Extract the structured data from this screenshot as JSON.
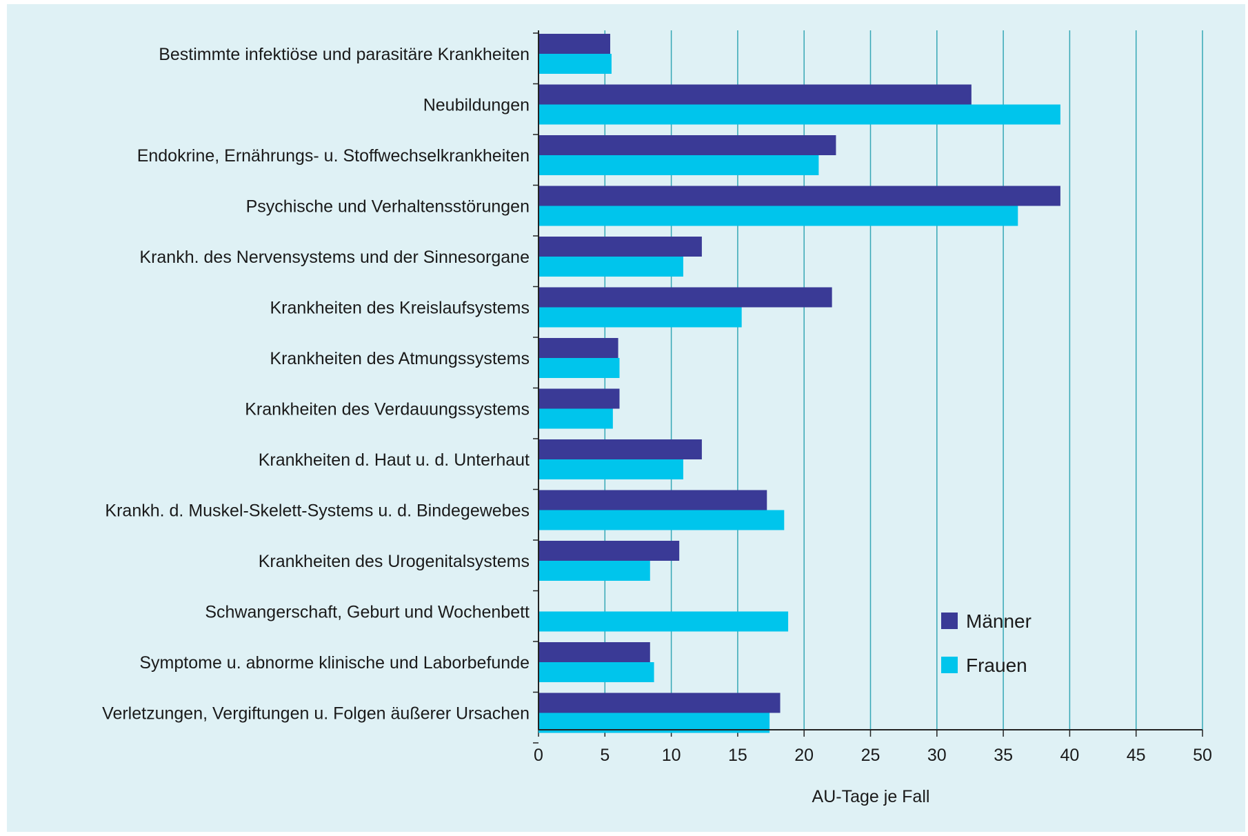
{
  "chart_data": {
    "type": "bar",
    "orientation": "horizontal",
    "categories": [
      "Bestimmte infektiöse und parasitäre Krankheiten",
      "Neubildungen",
      "Endokrine, Ernährungs- u. Stoffwechselkrankheiten",
      "Psychische und Verhaltensstörungen",
      "Krankh. des Nervensystems und der Sinnesorgane",
      "Krankheiten des Kreislaufsystems",
      "Krankheiten des Atmungssystems",
      "Krankheiten des Verdauungssystems",
      "Krankheiten d. Haut u. d. Unterhaut",
      "Krankh. d. Muskel-Skelett-Systems u. d. Bindegewebes",
      "Krankheiten des Urogenitalsystems",
      "Schwangerschaft, Geburt und Wochenbett",
      "Symptome u. abnorme klinische und Laborbefunde",
      "Verletzungen, Vergiftungen u. Folgen äußerer Ursachen"
    ],
    "series": [
      {
        "name": "Männer",
        "color": "#3a3a96",
        "values": [
          5.4,
          32.6,
          22.4,
          39.3,
          12.3,
          22.1,
          6.0,
          6.1,
          12.3,
          17.2,
          10.6,
          null,
          8.4,
          18.2
        ]
      },
      {
        "name": "Frauen",
        "color": "#00c5ec",
        "values": [
          5.5,
          39.3,
          21.1,
          36.1,
          10.9,
          15.3,
          6.1,
          5.6,
          10.9,
          18.5,
          8.4,
          18.8,
          8.7,
          17.4
        ]
      }
    ],
    "xlabel": "AU-Tage je Fall",
    "xlim": [
      0,
      50
    ],
    "xticks": [
      "0",
      "5",
      "10",
      "15",
      "20",
      "25",
      "30",
      "35",
      "40",
      "45",
      "50"
    ],
    "grid": "vertical",
    "legend_position": "bottom-right"
  }
}
